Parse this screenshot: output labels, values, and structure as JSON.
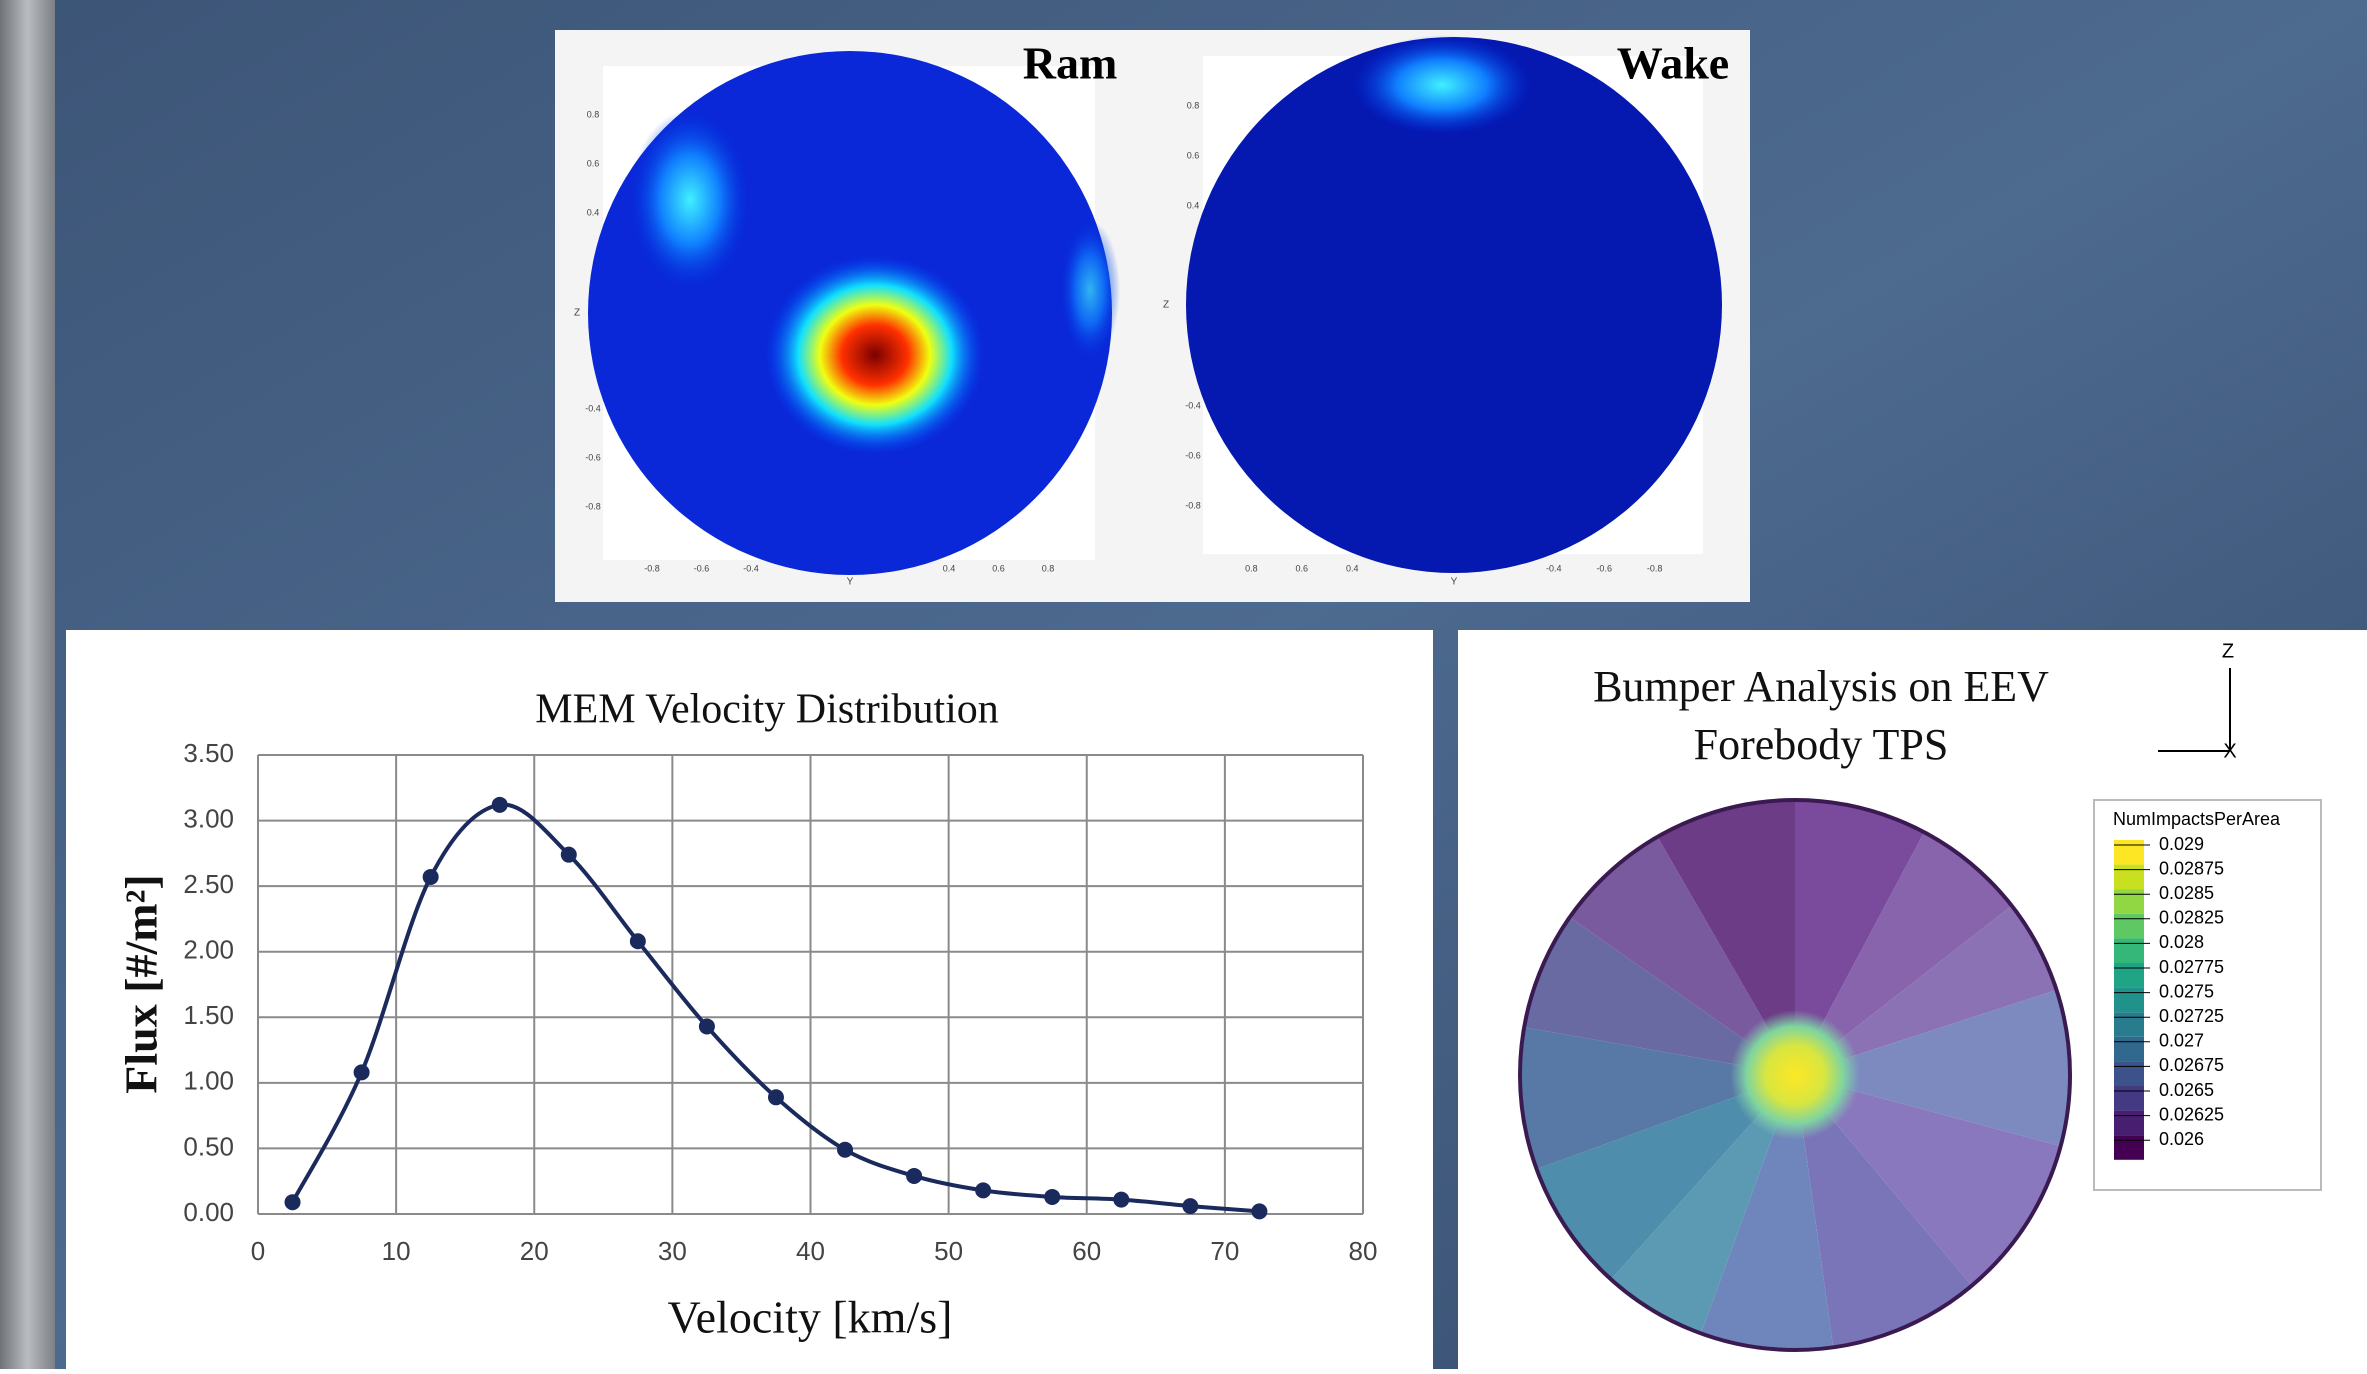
{
  "chart_data": [
    {
      "type": "line",
      "title": "MEM Velocity Distribution",
      "xlabel": "Velocity [km/s]",
      "ylabel": "Flux [#/m²]",
      "x": [
        2.5,
        7.5,
        12.5,
        17.5,
        22.5,
        27.5,
        32.5,
        37.5,
        42.5,
        47.5,
        52.5,
        57.5,
        62.5,
        67.5,
        72.5
      ],
      "series": [
        {
          "color": "#1b2a5c",
          "values": [
            0.09,
            1.08,
            2.57,
            3.12,
            2.74,
            2.08,
            1.43,
            0.89,
            0.49,
            0.29,
            0.18,
            0.13,
            0.11,
            0.06,
            0.02
          ]
        }
      ],
      "xlim": [
        0,
        80
      ],
      "xticks": [
        0,
        10,
        20,
        30,
        40,
        50,
        60,
        70,
        80
      ],
      "ylim": [
        0,
        3.5
      ],
      "yticks": [
        {
          "value": 0,
          "label": "0.00"
        },
        {
          "value": 0.5,
          "label": "0.50"
        },
        {
          "value": 1,
          "label": "1.00"
        },
        {
          "value": 1.5,
          "label": "1.50"
        },
        {
          "value": 2,
          "label": "2.00"
        },
        {
          "value": 2.5,
          "label": "2.50"
        },
        {
          "value": 3,
          "label": "3.00"
        },
        {
          "value": 3.5,
          "label": "3.50"
        }
      ],
      "grid": true
    },
    {
      "type": "heatmap",
      "title": "Ram",
      "xlabel": "Y",
      "ylabel": "Z",
      "xlim": [
        -1,
        1
      ],
      "ylim": [
        -1,
        1
      ],
      "xticks": [
        -0.8,
        -0.6,
        -0.4,
        0.4,
        0.6,
        0.8
      ],
      "yticks": [
        0.8,
        0.6,
        0.4,
        -0.4,
        -0.6,
        -0.8
      ]
    },
    {
      "type": "heatmap",
      "title": "Wake",
      "xlabel": "Y",
      "ylabel": "Z",
      "xlim": [
        1,
        -1
      ],
      "ylim": [
        -1,
        1
      ],
      "xticks": [
        0.8,
        0.6,
        0.4,
        -0.4,
        -0.6,
        -0.8
      ],
      "yticks": [
        0.8,
        0.6,
        0.4,
        -0.4,
        -0.6,
        -0.8
      ]
    },
    {
      "type": "contour",
      "title": [
        "Bumper Analysis on EEV",
        "Forebody TPS"
      ],
      "axes_labels": [
        "Z",
        "X"
      ],
      "colorbar_title": "NumImpactsPerArea",
      "levels": [
        0.029,
        0.02875,
        0.0285,
        0.02825,
        0.028,
        0.02775,
        0.0275,
        0.02725,
        0.027,
        0.02675,
        0.0265,
        0.02625,
        0.026
      ],
      "colors": [
        "#fde725",
        "#c8e020",
        "#90d743",
        "#5ec962",
        "#35b779",
        "#20a486",
        "#21918c",
        "#287c8e",
        "#31688e",
        "#3b528b",
        "#443983",
        "#481f70",
        "#440154"
      ]
    }
  ]
}
